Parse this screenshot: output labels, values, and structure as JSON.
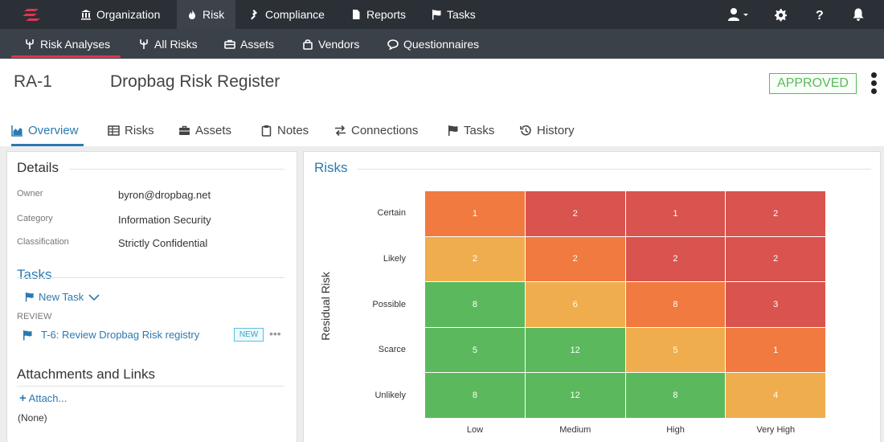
{
  "topnav": {
    "items": [
      {
        "label": "Organization",
        "icon": "bank-icon"
      },
      {
        "label": "Risk",
        "icon": "fire-icon",
        "active": true
      },
      {
        "label": "Compliance",
        "icon": "gavel-icon"
      },
      {
        "label": "Reports",
        "icon": "file-icon"
      },
      {
        "label": "Tasks",
        "icon": "flag-icon"
      }
    ],
    "right_icons": [
      "user-icon",
      "gear-icon",
      "help-icon",
      "bell-icon"
    ]
  },
  "subnav": {
    "items": [
      {
        "label": "Risk Analyses",
        "active": true
      },
      {
        "label": "All Risks"
      },
      {
        "label": "Assets"
      },
      {
        "label": "Vendors"
      },
      {
        "label": "Questionnaires"
      }
    ]
  },
  "header": {
    "record_id": "RA-1",
    "title": "Dropbag Risk Register",
    "status": "APPROVED"
  },
  "tabs": [
    {
      "label": "Overview",
      "active": true
    },
    {
      "label": "Risks"
    },
    {
      "label": "Assets"
    },
    {
      "label": "Notes"
    },
    {
      "label": "Connections"
    },
    {
      "label": "Tasks"
    },
    {
      "label": "History"
    }
  ],
  "details": {
    "title": "Details",
    "rows": [
      {
        "label": "Owner",
        "value": "byron@dropbag.net"
      },
      {
        "label": "Category",
        "value": "Information Security"
      },
      {
        "label": "Classification",
        "value": "Strictly Confidential"
      }
    ]
  },
  "tasks": {
    "title": "Tasks",
    "new_task_label": "New Task",
    "group_label": "REVIEW",
    "items": [
      {
        "label": "T-6: Review Dropbag Risk registry",
        "badge": "NEW",
        "more": "•••"
      }
    ]
  },
  "attachments": {
    "title": "Attachments and Links",
    "attach_label": "Attach...",
    "empty_label": "(None)"
  },
  "risks_panel": {
    "title": "Risks"
  },
  "chart_data": {
    "type": "heatmap",
    "ylabel": "Residual Risk",
    "xlabel": "",
    "rows": [
      "Certain",
      "Likely",
      "Possible",
      "Scarce",
      "Unlikely"
    ],
    "columns": [
      "Low",
      "Medium",
      "High",
      "Very High"
    ],
    "values": [
      [
        1,
        2,
        1,
        2
      ],
      [
        2,
        2,
        2,
        2
      ],
      [
        8,
        6,
        8,
        3
      ],
      [
        5,
        12,
        5,
        1
      ],
      [
        8,
        12,
        8,
        4
      ]
    ],
    "cell_colors": [
      [
        "#f07a3f",
        "#d9534f",
        "#d9534f",
        "#d9534f"
      ],
      [
        "#f0ad4e",
        "#f07a3f",
        "#d9534f",
        "#d9534f"
      ],
      [
        "#5cb85c",
        "#f0ad4e",
        "#f07a3f",
        "#d9534f"
      ],
      [
        "#5cb85c",
        "#5cb85c",
        "#f0ad4e",
        "#f07a3f"
      ],
      [
        "#5cb85c",
        "#5cb85c",
        "#5cb85c",
        "#f0ad4e"
      ]
    ]
  }
}
